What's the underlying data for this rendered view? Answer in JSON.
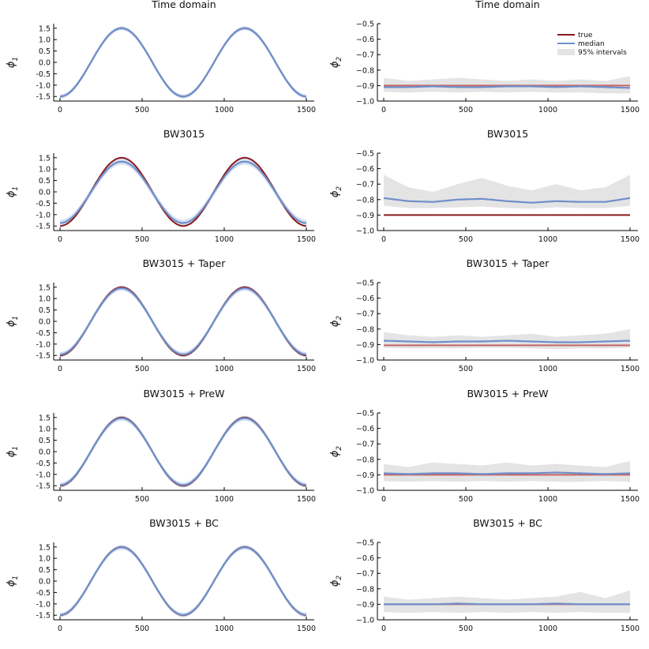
{
  "colors": {
    "true": "#8b1a1a",
    "true_light": "#c86464",
    "median": "#6f8fca",
    "band": "#e4e4e4",
    "band_phi1": "#c9d6ee"
  },
  "legend": {
    "true_label": "true",
    "median_label": "median",
    "interval_label": "95% intervals"
  },
  "chart_data": [
    {
      "type": "line",
      "title": "Time domain",
      "ylabel": "ϕ",
      "ylabel_sub": "1",
      "xlim": [
        0,
        1500
      ],
      "ylim": [
        -1.7,
        1.7
      ],
      "xticks": [
        "0",
        "500",
        "1000",
        "1500"
      ],
      "yticks": [
        "1.5",
        "1.0",
        "0.5",
        "0.0",
        "-0.5",
        "-1.0",
        "-1.5"
      ],
      "true_curve": "-1.5*cos(2*pi*t/750)",
      "median_shrink": 1.0,
      "median_offset": 0.0,
      "band_halfwidth": 0.09
    },
    {
      "type": "line",
      "title": "Time domain",
      "ylabel": "ϕ",
      "ylabel_sub": "2",
      "xlim": [
        0,
        1500
      ],
      "ylim": [
        -1.0,
        -0.5
      ],
      "xticks": [
        "0",
        "500",
        "1000",
        "1500"
      ],
      "yticks": [
        "−0.5",
        "−0.6",
        "−0.7",
        "−0.8",
        "−0.9",
        "−1.0"
      ],
      "true_value": -0.9,
      "true_style": "light",
      "median": [
        -0.91,
        -0.91,
        -0.905,
        -0.91,
        -0.91,
        -0.905,
        -0.905,
        -0.91,
        -0.905,
        -0.91,
        -0.915
      ],
      "lower": [
        -0.94,
        -0.945,
        -0.94,
        -0.945,
        -0.94,
        -0.945,
        -0.94,
        -0.945,
        -0.945,
        -0.95,
        -0.95
      ],
      "upper": [
        -0.85,
        -0.87,
        -0.86,
        -0.85,
        -0.86,
        -0.87,
        -0.86,
        -0.87,
        -0.86,
        -0.87,
        -0.84
      ],
      "show_legend": true
    },
    {
      "type": "line",
      "title": "BW3015",
      "ylabel": "ϕ",
      "ylabel_sub": "1",
      "xlim": [
        0,
        1500
      ],
      "ylim": [
        -1.7,
        1.7
      ],
      "xticks": [
        "0",
        "500",
        "1000",
        "1500"
      ],
      "yticks": [
        "1.5",
        "1.0",
        "0.5",
        "0.0",
        "-0.5",
        "-1.0",
        "-1.5"
      ],
      "true_curve": "-1.5*cos(2*pi*t/750)",
      "median_shrink": 0.9,
      "median_offset": -0.02,
      "band_halfwidth": 0.14
    },
    {
      "type": "line",
      "title": "BW3015",
      "ylabel": "ϕ",
      "ylabel_sub": "2",
      "xlim": [
        0,
        1500
      ],
      "ylim": [
        -1.0,
        -0.5
      ],
      "xticks": [
        "0",
        "500",
        "1000",
        "1500"
      ],
      "yticks": [
        "−0.5",
        "−0.6",
        "−0.7",
        "−0.8",
        "−0.9",
        "−1.0"
      ],
      "true_value": -0.9,
      "true_style": "dark",
      "median": [
        -0.79,
        -0.81,
        -0.815,
        -0.8,
        -0.795,
        -0.81,
        -0.82,
        -0.81,
        -0.815,
        -0.815,
        -0.79
      ],
      "lower": [
        -0.84,
        -0.855,
        -0.855,
        -0.85,
        -0.845,
        -0.855,
        -0.86,
        -0.85,
        -0.855,
        -0.855,
        -0.84
      ],
      "upper": [
        -0.64,
        -0.72,
        -0.75,
        -0.7,
        -0.66,
        -0.71,
        -0.74,
        -0.7,
        -0.74,
        -0.72,
        -0.64
      ]
    },
    {
      "type": "line",
      "title": "BW3015 + Taper",
      "ylabel": "ϕ",
      "ylabel_sub": "1",
      "xlim": [
        0,
        1500
      ],
      "ylim": [
        -1.7,
        1.7
      ],
      "xticks": [
        "0",
        "500",
        "1000",
        "1500"
      ],
      "yticks": [
        "1.5",
        "1.0",
        "0.5",
        "0.0",
        "-0.5",
        "-1.0",
        "-1.5"
      ],
      "true_curve": "-1.5*cos(2*pi*t/750)",
      "median_shrink": 0.97,
      "median_offset": 0.0,
      "band_halfwidth": 0.11
    },
    {
      "type": "line",
      "title": "BW3015 + Taper",
      "ylabel": "ϕ",
      "ylabel_sub": "2",
      "xlim": [
        0,
        1500
      ],
      "ylim": [
        -1.0,
        -0.5
      ],
      "xticks": [
        "0",
        "500",
        "1000",
        "1500"
      ],
      "yticks": [
        "−0.5",
        "−0.6",
        "−0.7",
        "−0.8",
        "−0.9",
        "−1.0"
      ],
      "true_value": -0.905,
      "true_style": "light",
      "median": [
        -0.875,
        -0.88,
        -0.885,
        -0.88,
        -0.88,
        -0.875,
        -0.88,
        -0.885,
        -0.885,
        -0.88,
        -0.875
      ],
      "lower": [
        -0.92,
        -0.925,
        -0.925,
        -0.925,
        -0.92,
        -0.92,
        -0.925,
        -0.93,
        -0.925,
        -0.925,
        -0.92
      ],
      "upper": [
        -0.82,
        -0.84,
        -0.85,
        -0.84,
        -0.85,
        -0.84,
        -0.83,
        -0.85,
        -0.84,
        -0.83,
        -0.8
      ]
    },
    {
      "type": "line",
      "title": "BW3015 + PreW",
      "ylabel": "ϕ",
      "ylabel_sub": "1",
      "xlim": [
        0,
        1500
      ],
      "ylim": [
        -1.7,
        1.7
      ],
      "xticks": [
        "0",
        "500",
        "1000",
        "1500"
      ],
      "yticks": [
        "1.5",
        "1.0",
        "0.5",
        "0.0",
        "-0.5",
        "-1.0",
        "-1.5"
      ],
      "true_curve": "-1.5*cos(2*pi*t/750)",
      "median_shrink": 0.98,
      "median_offset": 0.0,
      "band_halfwidth": 0.11
    },
    {
      "type": "line",
      "title": "BW3015 + PreW",
      "ylabel": "ϕ",
      "ylabel_sub": "2",
      "xlim": [
        0,
        1500
      ],
      "ylim": [
        -1.0,
        -0.5
      ],
      "xticks": [
        "0",
        "500",
        "1000",
        "1500"
      ],
      "yticks": [
        "−0.5",
        "−0.6",
        "−0.7",
        "−0.8",
        "−0.9",
        "−1.0"
      ],
      "true_value": -0.9,
      "true_style": "light",
      "median": [
        -0.89,
        -0.895,
        -0.89,
        -0.89,
        -0.895,
        -0.89,
        -0.89,
        -0.885,
        -0.89,
        -0.895,
        -0.89
      ],
      "lower": [
        -0.94,
        -0.945,
        -0.94,
        -0.945,
        -0.94,
        -0.945,
        -0.94,
        -0.945,
        -0.945,
        -0.94,
        -0.945
      ],
      "upper": [
        -0.83,
        -0.85,
        -0.82,
        -0.83,
        -0.84,
        -0.82,
        -0.84,
        -0.83,
        -0.84,
        -0.85,
        -0.81
      ]
    },
    {
      "type": "line",
      "title": "BW3015 + BC",
      "ylabel": "ϕ",
      "ylabel_sub": "1",
      "xlim": [
        0,
        1500
      ],
      "ylim": [
        -1.7,
        1.7
      ],
      "xticks": [
        "0",
        "500",
        "1000",
        "1500"
      ],
      "yticks": [
        "1.5",
        "1.0",
        "0.5",
        "0.0",
        "-0.5",
        "-1.0",
        "-1.5"
      ],
      "true_curve": "-1.5*cos(2*pi*t/750)",
      "median_shrink": 0.99,
      "median_offset": 0.0,
      "band_halfwidth": 0.1
    },
    {
      "type": "line",
      "title": "BW3015 + BC",
      "ylabel": "ϕ",
      "ylabel_sub": "2",
      "xlim": [
        0,
        1500
      ],
      "ylim": [
        -1.0,
        -0.5
      ],
      "xticks": [
        "0",
        "500",
        "1000",
        "1500"
      ],
      "yticks": [
        "−0.5",
        "−0.6",
        "−0.7",
        "−0.8",
        "−0.9",
        "−1.0"
      ],
      "true_value": -0.9,
      "true_style": "light",
      "median": [
        -0.9,
        -0.9,
        -0.9,
        -0.895,
        -0.9,
        -0.9,
        -0.9,
        -0.895,
        -0.9,
        -0.9,
        -0.9
      ],
      "lower": [
        -0.95,
        -0.955,
        -0.95,
        -0.955,
        -0.95,
        -0.955,
        -0.95,
        -0.955,
        -0.95,
        -0.955,
        -0.955
      ],
      "upper": [
        -0.85,
        -0.87,
        -0.86,
        -0.85,
        -0.86,
        -0.87,
        -0.86,
        -0.85,
        -0.82,
        -0.86,
        -0.81
      ]
    }
  ]
}
